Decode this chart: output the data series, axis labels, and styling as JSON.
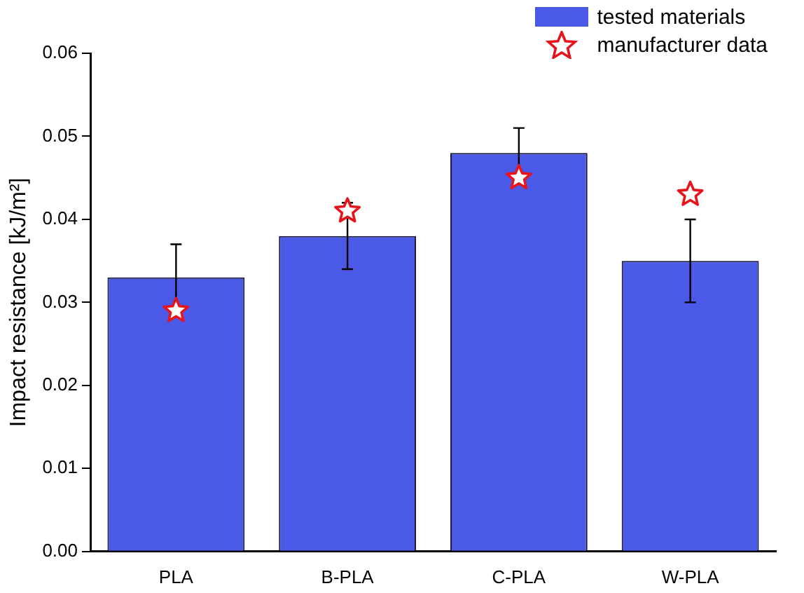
{
  "chart_data": {
    "type": "bar",
    "ylabel": "Impact resistance [kJ/m²]",
    "categories": [
      "PLA",
      "B-PLA",
      "C-PLA",
      "W-PLA"
    ],
    "series": [
      {
        "name": "tested materials",
        "color": "#4b5ae6",
        "values": [
          0.033,
          0.038,
          0.048,
          0.035
        ],
        "errors": [
          0.004,
          0.004,
          0.003,
          0.005
        ]
      },
      {
        "name": "manufacturer data",
        "type": "scatter",
        "color": "#e8141c",
        "x": [
          "PLA",
          "B-PLA",
          "C-PLA",
          "W-PLA"
        ],
        "values": [
          0.029,
          0.041,
          0.045,
          0.043
        ]
      }
    ],
    "ylim": [
      0,
      0.06
    ],
    "yticks": [
      {
        "value": 0,
        "label": "0.00"
      },
      {
        "value": 0.01,
        "label": "0.01"
      },
      {
        "value": 0.02,
        "label": "0.02"
      },
      {
        "value": 0.03,
        "label": "0.03"
      },
      {
        "value": 0.04,
        "label": "0.04"
      },
      {
        "value": 0.05,
        "label": "0.05"
      },
      {
        "value": 0.06,
        "label": "0.06"
      }
    ],
    "grid": false,
    "legend": "top right",
    "marker": "star"
  }
}
